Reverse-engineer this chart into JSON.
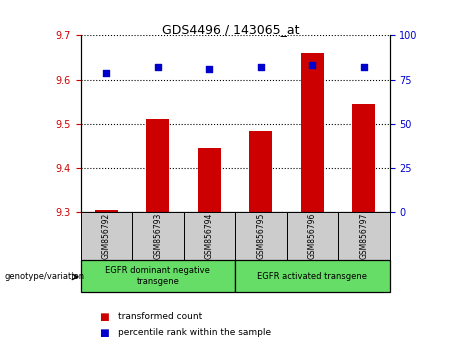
{
  "title": "GDS4496 / 143065_at",
  "samples": [
    "GSM856792",
    "GSM856793",
    "GSM856794",
    "GSM856795",
    "GSM856796",
    "GSM856797"
  ],
  "transformed_counts": [
    9.305,
    9.51,
    9.445,
    9.485,
    9.66,
    9.545
  ],
  "percentile_ranks": [
    79,
    82,
    81,
    82,
    83,
    82
  ],
  "ylim_left": [
    9.3,
    9.7
  ],
  "ylim_right": [
    0,
    100
  ],
  "yticks_left": [
    9.3,
    9.4,
    9.5,
    9.6,
    9.7
  ],
  "yticks_right": [
    0,
    25,
    50,
    75,
    100
  ],
  "bar_color": "#cc0000",
  "scatter_color": "#0000cc",
  "bar_bottom": 9.3,
  "bar_width": 0.45,
  "groups": [
    {
      "label": "EGFR dominant negative\ntransgene",
      "span": [
        0,
        3
      ]
    },
    {
      "label": "EGFR activated transgene",
      "span": [
        3,
        6
      ]
    }
  ],
  "group_color": "#66dd66",
  "sample_box_color": "#cccccc",
  "group_label": "genotype/variation",
  "legend_items": [
    {
      "label": "transformed count",
      "color": "#cc0000"
    },
    {
      "label": "percentile rank within the sample",
      "color": "#0000cc"
    }
  ],
  "title_fontsize": 9,
  "axis_fontsize": 7,
  "sample_fontsize": 5.5,
  "group_fontsize": 6,
  "legend_fontsize": 6.5
}
